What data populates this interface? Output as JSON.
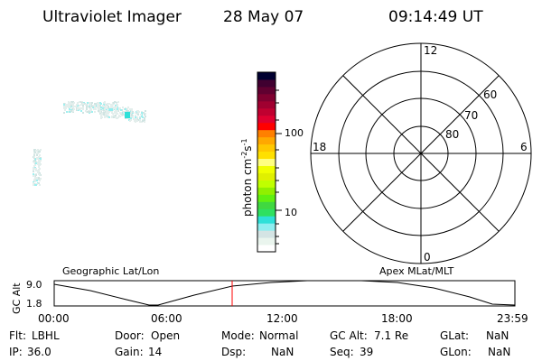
{
  "header": {
    "title": "Ultraviolet Imager",
    "date": "28 May 07",
    "time": "09:14:49 UT"
  },
  "colorbar": {
    "label": "photon cm",
    "label_sup1": "-2",
    "label_s": "s",
    "label_sup2": "-1",
    "tick_labels": [
      "10",
      "100"
    ],
    "colors": [
      "#ffffff",
      "#eaf5ee",
      "#d4e4e4",
      "#8eeef0",
      "#2ee0d8",
      "#2ee060",
      "#40d840",
      "#60f010",
      "#90f000",
      "#c0ff00",
      "#e0f000",
      "#f0ff00",
      "#ffff80",
      "#ffe000",
      "#ffc800",
      "#ffa800",
      "#ff8000",
      "#ff0000",
      "#e00030",
      "#c00030",
      "#a00030",
      "#800030",
      "#600030",
      "#400030",
      "#000030"
    ]
  },
  "polar": {
    "mlt_labels": {
      "top": "12",
      "bottom": "0",
      "left": "18",
      "right": "6"
    },
    "lat_labels": [
      "80",
      "70",
      "60"
    ]
  },
  "altitude_plot": {
    "left_title": "Geographic Lat/Lon",
    "right_title": "Apex MLat/MLT",
    "ylabel": "GC Alt",
    "y_ticks": [
      "9.0",
      "1.8"
    ],
    "x_ticks": [
      "00:00",
      "06:00",
      "12:00",
      "18:00",
      "23:59"
    ],
    "current_time_marker_color": "#ff0000"
  },
  "status": {
    "row1": [
      {
        "label": "Flt:",
        "value": "LBHL"
      },
      {
        "label": "Door:",
        "value": "Open"
      },
      {
        "label": "Mode:",
        "value": "Normal"
      },
      {
        "label": "GC Alt:",
        "value": "7.1 Re"
      },
      {
        "label": "GLat:",
        "value": "NaN"
      }
    ],
    "row2": [
      {
        "label": "IP:",
        "value": "36.0"
      },
      {
        "label": "Gain:",
        "value": "14"
      },
      {
        "label": "Dsp:",
        "value": "NaN"
      },
      {
        "label": "Seq:",
        "value": "39"
      },
      {
        "label": "GLon:",
        "value": "NaN"
      }
    ]
  }
}
